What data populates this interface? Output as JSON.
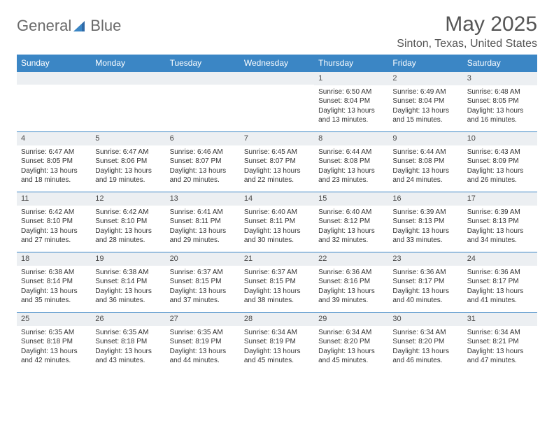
{
  "brand": {
    "word1": "General",
    "word2": "Blue"
  },
  "colors": {
    "header_bg": "#3b86c5",
    "header_text": "#ffffff",
    "daybar_bg": "#eceff2",
    "border": "#3b86c5",
    "body_text": "#333333",
    "title_text": "#555555"
  },
  "title": "May 2025",
  "location": "Sinton, Texas, United States",
  "dow": [
    "Sunday",
    "Monday",
    "Tuesday",
    "Wednesday",
    "Thursday",
    "Friday",
    "Saturday"
  ],
  "layout": {
    "first_weekday_index": 4,
    "days_in_month": 31
  },
  "days": {
    "1": {
      "sunrise": "6:50 AM",
      "sunset": "8:04 PM",
      "daylight": "13 hours and 13 minutes."
    },
    "2": {
      "sunrise": "6:49 AM",
      "sunset": "8:04 PM",
      "daylight": "13 hours and 15 minutes."
    },
    "3": {
      "sunrise": "6:48 AM",
      "sunset": "8:05 PM",
      "daylight": "13 hours and 16 minutes."
    },
    "4": {
      "sunrise": "6:47 AM",
      "sunset": "8:05 PM",
      "daylight": "13 hours and 18 minutes."
    },
    "5": {
      "sunrise": "6:47 AM",
      "sunset": "8:06 PM",
      "daylight": "13 hours and 19 minutes."
    },
    "6": {
      "sunrise": "6:46 AM",
      "sunset": "8:07 PM",
      "daylight": "13 hours and 20 minutes."
    },
    "7": {
      "sunrise": "6:45 AM",
      "sunset": "8:07 PM",
      "daylight": "13 hours and 22 minutes."
    },
    "8": {
      "sunrise": "6:44 AM",
      "sunset": "8:08 PM",
      "daylight": "13 hours and 23 minutes."
    },
    "9": {
      "sunrise": "6:44 AM",
      "sunset": "8:08 PM",
      "daylight": "13 hours and 24 minutes."
    },
    "10": {
      "sunrise": "6:43 AM",
      "sunset": "8:09 PM",
      "daylight": "13 hours and 26 minutes."
    },
    "11": {
      "sunrise": "6:42 AM",
      "sunset": "8:10 PM",
      "daylight": "13 hours and 27 minutes."
    },
    "12": {
      "sunrise": "6:42 AM",
      "sunset": "8:10 PM",
      "daylight": "13 hours and 28 minutes."
    },
    "13": {
      "sunrise": "6:41 AM",
      "sunset": "8:11 PM",
      "daylight": "13 hours and 29 minutes."
    },
    "14": {
      "sunrise": "6:40 AM",
      "sunset": "8:11 PM",
      "daylight": "13 hours and 30 minutes."
    },
    "15": {
      "sunrise": "6:40 AM",
      "sunset": "8:12 PM",
      "daylight": "13 hours and 32 minutes."
    },
    "16": {
      "sunrise": "6:39 AM",
      "sunset": "8:13 PM",
      "daylight": "13 hours and 33 minutes."
    },
    "17": {
      "sunrise": "6:39 AM",
      "sunset": "8:13 PM",
      "daylight": "13 hours and 34 minutes."
    },
    "18": {
      "sunrise": "6:38 AM",
      "sunset": "8:14 PM",
      "daylight": "13 hours and 35 minutes."
    },
    "19": {
      "sunrise": "6:38 AM",
      "sunset": "8:14 PM",
      "daylight": "13 hours and 36 minutes."
    },
    "20": {
      "sunrise": "6:37 AM",
      "sunset": "8:15 PM",
      "daylight": "13 hours and 37 minutes."
    },
    "21": {
      "sunrise": "6:37 AM",
      "sunset": "8:15 PM",
      "daylight": "13 hours and 38 minutes."
    },
    "22": {
      "sunrise": "6:36 AM",
      "sunset": "8:16 PM",
      "daylight": "13 hours and 39 minutes."
    },
    "23": {
      "sunrise": "6:36 AM",
      "sunset": "8:17 PM",
      "daylight": "13 hours and 40 minutes."
    },
    "24": {
      "sunrise": "6:36 AM",
      "sunset": "8:17 PM",
      "daylight": "13 hours and 41 minutes."
    },
    "25": {
      "sunrise": "6:35 AM",
      "sunset": "8:18 PM",
      "daylight": "13 hours and 42 minutes."
    },
    "26": {
      "sunrise": "6:35 AM",
      "sunset": "8:18 PM",
      "daylight": "13 hours and 43 minutes."
    },
    "27": {
      "sunrise": "6:35 AM",
      "sunset": "8:19 PM",
      "daylight": "13 hours and 44 minutes."
    },
    "28": {
      "sunrise": "6:34 AM",
      "sunset": "8:19 PM",
      "daylight": "13 hours and 45 minutes."
    },
    "29": {
      "sunrise": "6:34 AM",
      "sunset": "8:20 PM",
      "daylight": "13 hours and 45 minutes."
    },
    "30": {
      "sunrise": "6:34 AM",
      "sunset": "8:20 PM",
      "daylight": "13 hours and 46 minutes."
    },
    "31": {
      "sunrise": "6:34 AM",
      "sunset": "8:21 PM",
      "daylight": "13 hours and 47 minutes."
    }
  },
  "labels": {
    "sunrise": "Sunrise:",
    "sunset": "Sunset:",
    "daylight": "Daylight:"
  }
}
